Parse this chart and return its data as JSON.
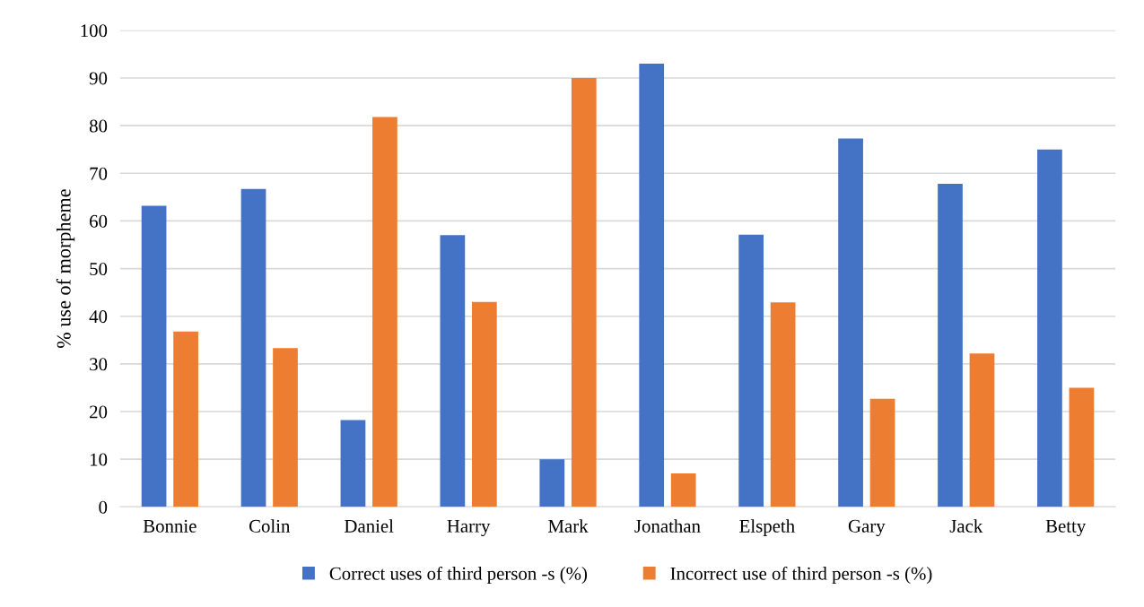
{
  "chart_data": {
    "type": "bar",
    "ylabel": "% use of morpheme",
    "categories": [
      "Bonnie",
      "Colin",
      "Daniel",
      "Harry",
      "Mark",
      "Jonathan",
      "Elspeth",
      "Gary",
      "Jack",
      "Betty"
    ],
    "series": [
      {
        "name": "Correct uses of third person -s (%)",
        "color": "#4472c4",
        "values": [
          63.2,
          66.7,
          18.2,
          57,
          10,
          93,
          57.1,
          77.3,
          67.8,
          75
        ]
      },
      {
        "name": "Incorrect use of third person -s (%)",
        "color": "#ed7d31",
        "values": [
          36.8,
          33.3,
          81.8,
          43,
          90,
          7,
          42.9,
          22.7,
          32.2,
          25
        ]
      }
    ],
    "ylim": [
      0,
      100
    ],
    "yticks": [
      0,
      10,
      20,
      30,
      40,
      50,
      60,
      70,
      80,
      90,
      100
    ],
    "grid": "y",
    "legend": "bottom"
  }
}
